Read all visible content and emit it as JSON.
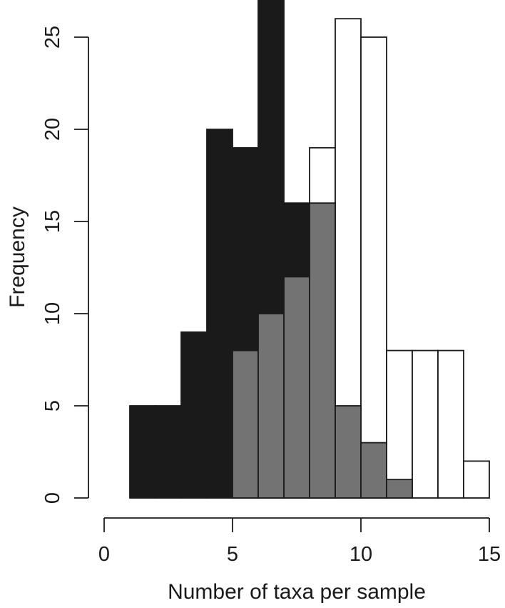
{
  "chart_data": {
    "type": "bar",
    "subtype": "overlaid-histogram",
    "xlabel": "Number of taxa per sample",
    "ylabel": "Frequency",
    "xlim": [
      0,
      15
    ],
    "ylim": [
      0,
      25
    ],
    "x_ticks": [
      "0",
      "5",
      "10",
      "15"
    ],
    "y_ticks": [
      "0",
      "5",
      "10",
      "15",
      "20",
      "25"
    ],
    "grid": false,
    "legend": "none",
    "series": [
      {
        "fill": "#1a1a1a",
        "bins": [
          {
            "x0": 1,
            "x1": 2,
            "count": 5
          },
          {
            "x0": 2,
            "x1": 3,
            "count": 5
          },
          {
            "x0": 3,
            "x1": 4,
            "count": 9
          },
          {
            "x0": 4,
            "x1": 5,
            "count": 20
          },
          {
            "x0": 5,
            "x1": 6,
            "count": 19
          },
          {
            "x0": 6,
            "x1": 7,
            "count": 27
          },
          {
            "x0": 7,
            "x1": 8,
            "count": 16
          },
          {
            "x0": 8,
            "x1": 9,
            "count": 12
          }
        ]
      },
      {
        "fill": "#ffffff",
        "bins": [
          {
            "x0": 8,
            "x1": 9,
            "count": 19
          },
          {
            "x0": 9,
            "x1": 10,
            "count": 26
          },
          {
            "x0": 10,
            "x1": 11,
            "count": 25
          },
          {
            "x0": 11,
            "x1": 12,
            "count": 8
          },
          {
            "x0": 12,
            "x1": 13,
            "count": 8
          },
          {
            "x0": 13,
            "x1": 14,
            "count": 8
          },
          {
            "x0": 14,
            "x1": 15,
            "count": 2
          }
        ]
      },
      {
        "fill": "#737373",
        "bins": [
          {
            "x0": 5,
            "x1": 6,
            "count": 8
          },
          {
            "x0": 6,
            "x1": 7,
            "count": 10
          },
          {
            "x0": 7,
            "x1": 8,
            "count": 12
          },
          {
            "x0": 8,
            "x1": 9,
            "count": 16
          },
          {
            "x0": 9,
            "x1": 10,
            "count": 5
          },
          {
            "x0": 10,
            "x1": 11,
            "count": 3
          },
          {
            "x0": 11,
            "x1": 12,
            "count": 1
          }
        ]
      }
    ]
  }
}
